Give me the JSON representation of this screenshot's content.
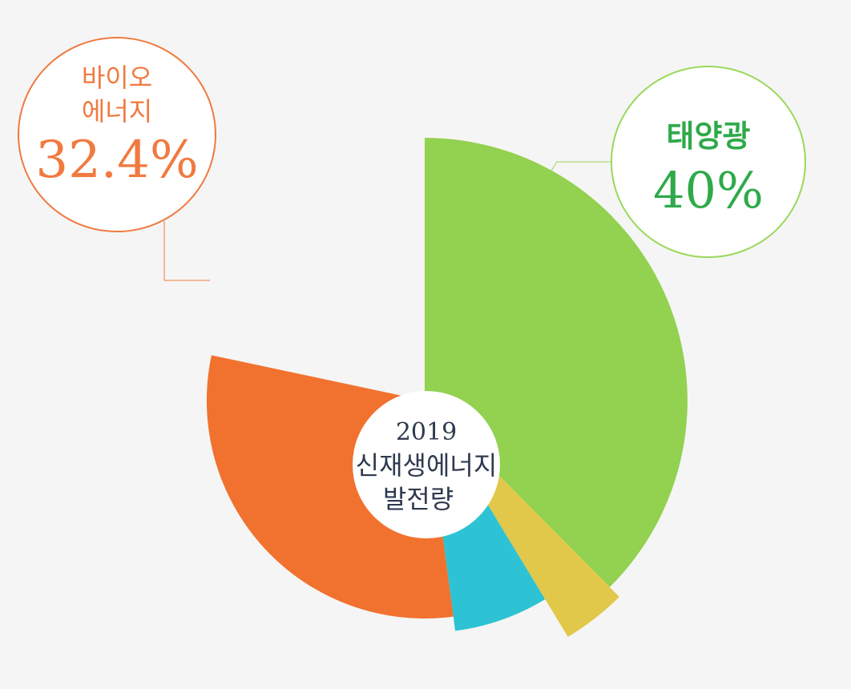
{
  "chart_data": {
    "type": "pie",
    "title": "",
    "center_label": {
      "year": "2019",
      "line1": "신재생에너지",
      "line2": "발전량"
    },
    "slices": [
      {
        "label": "태양광",
        "value": 40,
        "color": "#93d150"
      },
      {
        "label": "",
        "value": 4,
        "color": "#e2c84a"
      },
      {
        "label": "",
        "value": 7,
        "color": "#2ec3d4"
      },
      {
        "label": "바이오 에너지",
        "value": 32.4,
        "color": "#f1722e"
      }
    ],
    "callouts": {
      "bio": {
        "name_line1": "바이오",
        "name_line2": "에너지",
        "percent": "32.4%",
        "color": "#f07a40"
      },
      "solar": {
        "name": "태양광",
        "percent": "40%",
        "color": "#2eaa4a",
        "border_color": "#9ad85a"
      }
    }
  }
}
